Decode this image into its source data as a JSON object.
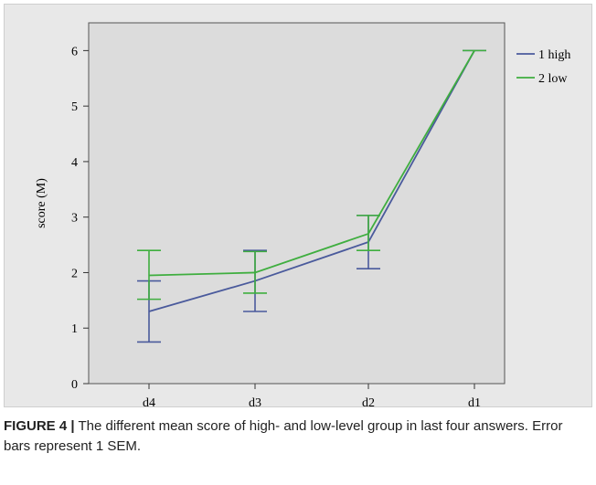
{
  "chart_data": {
    "type": "line",
    "title": "",
    "xlabel": "",
    "ylabel": "score (M)",
    "categories": [
      "d4",
      "d3",
      "d2",
      "d1"
    ],
    "ylim": [
      0,
      6.5
    ],
    "yticks": [
      "0",
      "1",
      "2",
      "3",
      "4",
      "5",
      "6"
    ],
    "legend_position": "right",
    "error_bars": "1 SEM",
    "series": [
      {
        "name": "1 high",
        "color": "#4a5a9c",
        "values": [
          1.3,
          1.85,
          2.55,
          6.0
        ],
        "err_low": [
          0.75,
          1.3,
          2.07,
          6.0
        ],
        "err_high": [
          1.85,
          2.4,
          3.03,
          6.0
        ]
      },
      {
        "name": "2 low",
        "color": "#3fae3f",
        "values": [
          1.95,
          2.0,
          2.7,
          6.0
        ],
        "err_low": [
          1.52,
          1.63,
          2.4,
          6.0
        ],
        "err_high": [
          2.4,
          2.38,
          3.03,
          6.0
        ]
      }
    ]
  },
  "caption": {
    "label": "FIGURE 4",
    "separator": "|",
    "text": "The different mean score of high- and low-level group in last four answers. Error bars represent 1 SEM."
  }
}
